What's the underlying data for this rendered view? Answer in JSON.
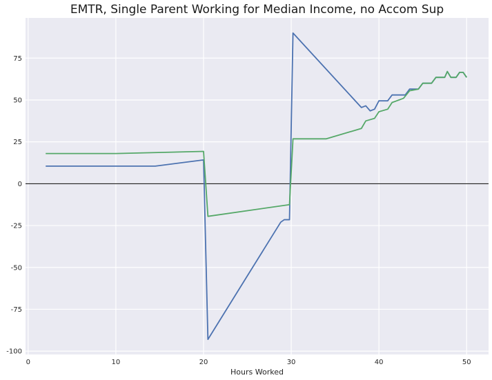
{
  "chart_data": {
    "type": "line",
    "title": "EMTR, Single Parent Working for Median Income, no Accom Sup",
    "xlabel": "Hours Worked",
    "ylabel": "",
    "xlim": [
      -0.3,
      52.5
    ],
    "ylim": [
      -102,
      99
    ],
    "xticks": [
      0,
      10,
      20,
      30,
      40,
      50
    ],
    "yticks": [
      -100,
      -75,
      -50,
      -25,
      0,
      25,
      50,
      75
    ],
    "grid": true,
    "background": "#eaeaf2",
    "zero_line": true,
    "series": [
      {
        "color": "#4c72b0",
        "points": [
          [
            2,
            10.5
          ],
          [
            14.5,
            10.5
          ],
          [
            20,
            14.2
          ],
          [
            20.5,
            -93
          ],
          [
            25,
            -55
          ],
          [
            28.8,
            -23
          ],
          [
            29.2,
            -21.5
          ],
          [
            29.8,
            -21.5
          ],
          [
            30.2,
            90
          ],
          [
            38,
            45.5
          ],
          [
            38.5,
            46.5
          ],
          [
            39,
            43.5
          ],
          [
            39.5,
            44.5
          ],
          [
            40,
            49.5
          ],
          [
            41,
            49.5
          ],
          [
            41.5,
            53
          ],
          [
            43,
            53
          ],
          [
            43.5,
            56.5
          ],
          [
            44.5,
            56.5
          ],
          [
            45,
            60
          ],
          [
            46,
            60
          ],
          [
            46.5,
            63.5
          ],
          [
            47.5,
            63.5
          ],
          [
            47.8,
            67
          ],
          [
            48.2,
            63.5
          ],
          [
            48.8,
            63.5
          ],
          [
            49.2,
            66.5
          ],
          [
            49.6,
            66.5
          ],
          [
            50,
            63.5
          ]
        ]
      },
      {
        "color": "#55a868",
        "points": [
          [
            2,
            18
          ],
          [
            10,
            18
          ],
          [
            20,
            19.3
          ],
          [
            20.5,
            -19.5
          ],
          [
            29.8,
            -12.5
          ],
          [
            30.2,
            26.8
          ],
          [
            34,
            26.8
          ],
          [
            38,
            33
          ],
          [
            38.5,
            37.5
          ],
          [
            39.5,
            39
          ],
          [
            40,
            43
          ],
          [
            41,
            44.5
          ],
          [
            41.5,
            48.5
          ],
          [
            42.8,
            51
          ],
          [
            43.5,
            55.5
          ],
          [
            44.5,
            56.5
          ],
          [
            45,
            60
          ],
          [
            46,
            60
          ],
          [
            46.5,
            63.5
          ],
          [
            47.5,
            63.5
          ],
          [
            47.8,
            67
          ],
          [
            48.2,
            63.5
          ],
          [
            48.8,
            63.5
          ],
          [
            49.2,
            66.5
          ],
          [
            49.6,
            66.5
          ],
          [
            50,
            63.5
          ]
        ]
      }
    ]
  }
}
